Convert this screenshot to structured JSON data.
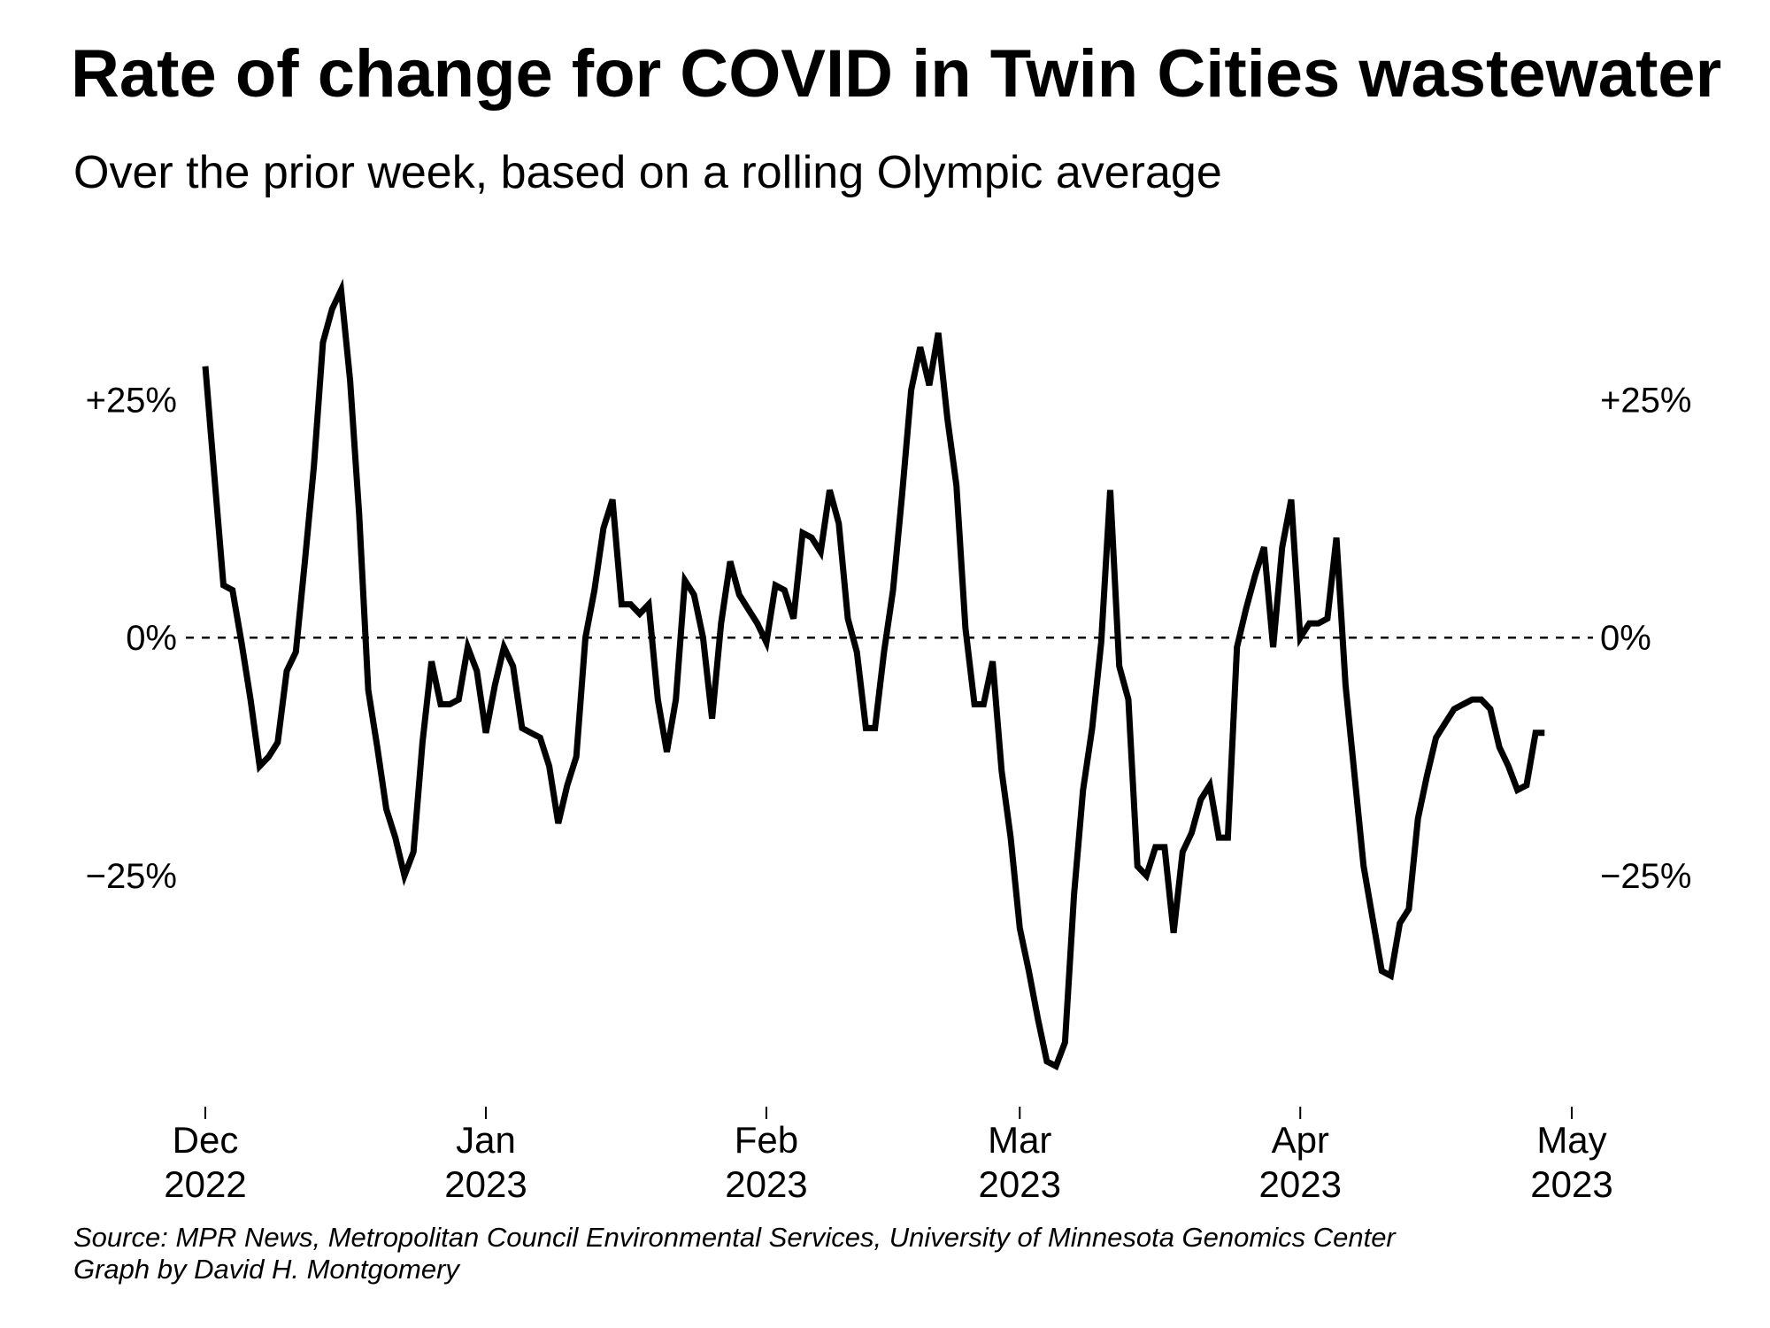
{
  "chart_data": {
    "type": "line",
    "title": "Rate of change for COVID in Twin Cities wastewater",
    "subtitle": "Over the prior week, based on a rolling Olympic average",
    "xlabel": "",
    "ylabel": "",
    "x_start": "2022-12-01",
    "x_step_days": 1,
    "xlim": [
      "2022-12-01",
      "2023-05-01"
    ],
    "ylim": [
      -46,
      40
    ],
    "yticks": [
      {
        "value": 25,
        "label": "+25%"
      },
      {
        "value": 0,
        "label": "0%"
      },
      {
        "value": -25,
        "label": "−25%"
      }
    ],
    "xticks": [
      {
        "date": "2022-12-01",
        "month": "Dec",
        "year": "2022"
      },
      {
        "date": "2023-01-01",
        "month": "Jan",
        "year": "2023"
      },
      {
        "date": "2023-02-01",
        "month": "Feb",
        "year": "2023"
      },
      {
        "date": "2023-03-01",
        "month": "Mar",
        "year": "2023"
      },
      {
        "date": "2023-04-01",
        "month": "Apr",
        "year": "2023"
      },
      {
        "date": "2023-05-01",
        "month": "May",
        "year": "2023"
      }
    ],
    "reference_line": {
      "value": 0,
      "style": "dashed"
    },
    "grid": false,
    "legend": "none",
    "series_color": "#000000",
    "series": [
      {
        "values": [
          28.5,
          17,
          5.5,
          5,
          -0.5,
          -6.5,
          -13.5,
          -12.5,
          -11,
          -3.5,
          -1.5,
          8,
          18,
          31,
          34.5,
          36.5,
          27,
          13,
          -5.5,
          -11.5,
          -18,
          -21,
          -25,
          -22.5,
          -11,
          -2.5,
          -7,
          -7,
          -6.5,
          -1,
          -3.5,
          -10,
          -5,
          -1,
          -3,
          -9.5,
          -10,
          -10.5,
          -13.5,
          -19.5,
          -15.5,
          -12.5,
          0,
          5,
          11.5,
          14.5,
          3.5,
          3.5,
          2.5,
          3.5,
          -6.5,
          -12,
          -6.5,
          6,
          4.5,
          0,
          -8.5,
          1.5,
          8,
          4.5,
          3,
          1.5,
          -0.5,
          5.5,
          5,
          2,
          11,
          10.5,
          9,
          15.5,
          12,
          2,
          -1.5,
          -9.5,
          -9.5,
          -1.5,
          5,
          15,
          26,
          30.5,
          26.5,
          32,
          23,
          16,
          1,
          -7,
          -7,
          -2.5,
          -14,
          -21,
          -30.5,
          -35,
          -40,
          -44.5,
          -45,
          -42.5,
          -27,
          -16,
          -9.5,
          -0.5,
          15.5,
          -3,
          -6.5,
          -24,
          -25,
          -22,
          -22,
          -31,
          -22.5,
          -20.5,
          -17,
          -15.5,
          -21,
          -21,
          -1,
          3,
          6.5,
          9.5,
          -1,
          9.5,
          14.5,
          0,
          1.5,
          1.5,
          2,
          10.5,
          -5,
          -14.5,
          -24,
          -29.5,
          -35,
          -35.5,
          -30,
          -28.5,
          -19,
          -14.5,
          -10.5,
          -9,
          -7.5,
          -7,
          -6.5,
          -6.5,
          -7.5,
          -11.5,
          -13.5,
          -16,
          -15.5,
          -10,
          -10
        ]
      }
    ]
  },
  "footer": {
    "source": "Source: MPR News, Metropolitan Council Environmental Services, University of Minnesota Genomics Center",
    "credit": "Graph by David H. Montgomery"
  }
}
